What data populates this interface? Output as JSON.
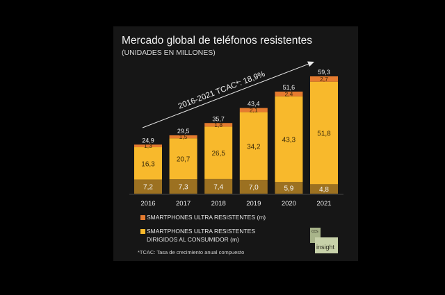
{
  "header": {
    "title": "Mercado global de teléfonos resistentes",
    "subtitle": "(UNIDADES EN MILLONES)"
  },
  "colors": {
    "ultra": "#e57b2f",
    "consumer": "#f8b92c",
    "base": "#9c7121",
    "text": "#f0f0f0"
  },
  "chart_data": {
    "type": "bar",
    "stacked": true,
    "categories": [
      "2016",
      "2017",
      "2018",
      "2019",
      "2020",
      "2021"
    ],
    "series": [
      {
        "name": "",
        "values": [
          7.2,
          7.3,
          7.4,
          7.0,
          5.9,
          4.8
        ],
        "labels": [
          "7,2",
          "7,3",
          "7,4",
          "7,0",
          "5,9",
          "4,8"
        ]
      },
      {
        "name": "SMARTPHONES ULTRA RESISTENTES DIRIGIDOS AL CONSUMIDOR (m)",
        "values": [
          16.3,
          20.7,
          26.5,
          34.2,
          43.3,
          51.8
        ],
        "labels": [
          "16,3",
          "20,7",
          "26,5",
          "34,2",
          "43,3",
          "51,8"
        ]
      },
      {
        "name": "SMARTPHONES ULTRA RESISTENTES (m)",
        "values": [
          1.3,
          1.5,
          1.8,
          2.1,
          2.4,
          2.7
        ],
        "labels": [
          "1,3",
          "1,5",
          "1,8",
          "2,1",
          "2,4",
          "2,7"
        ]
      }
    ],
    "totals": [
      24.9,
      29.5,
      35.7,
      43.4,
      51.6,
      59.3
    ],
    "total_labels": [
      "24,9",
      "29,5",
      "35,7",
      "43,4",
      "51,6",
      "59,3"
    ],
    "annotation": "2016-2021 TCAC*: 18,9%",
    "ylim": [
      0,
      60
    ],
    "grid": false,
    "legend_position": "bottom"
  },
  "legend": [
    {
      "label": "SMARTPHONES ULTRA RESISTENTES (m)"
    },
    {
      "label_line1": "SMARTPHONES ULTRA RESISTENTES",
      "label_line2": "DIRIGIDOS AL CONSUMIDOR (m)"
    }
  ],
  "footnote": "*TCAC: Tasa de crecimiento anual compuesto",
  "logo": {
    "top": "ccs",
    "main": "insight"
  }
}
